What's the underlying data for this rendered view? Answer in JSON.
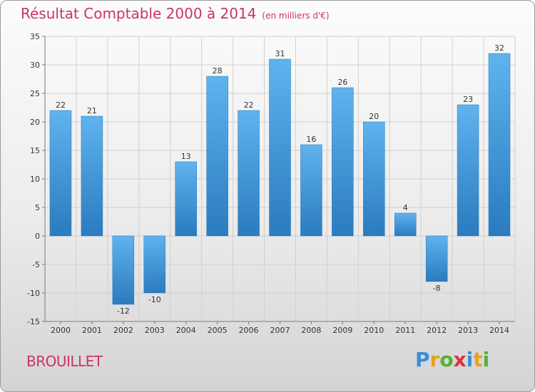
{
  "title": "Résultat Comptable 2000 à 2014",
  "unit": "(en milliers d'€)",
  "place": "BROUILLET",
  "brand": {
    "letters": [
      {
        "ch": "P",
        "color": "#3a8fd6"
      },
      {
        "ch": "r",
        "color": "#e8a020"
      },
      {
        "ch": "o",
        "color": "#55b030"
      },
      {
        "ch": "x",
        "color": "#e03040"
      },
      {
        "ch": "i",
        "color": "#3a8fd6"
      },
      {
        "ch": "t",
        "color": "#e8a020"
      },
      {
        "ch": "i",
        "color": "#55b030"
      }
    ]
  },
  "colors": {
    "accent": "#cc3366",
    "bar_top": "#5fb3ee",
    "bar_bottom": "#2a7bbf",
    "axis": "#7a7a7a",
    "grid": "#d0d0d0"
  },
  "chart_data": {
    "type": "bar",
    "categories": [
      "2000",
      "2001",
      "2002",
      "2003",
      "2004",
      "2005",
      "2006",
      "2007",
      "2008",
      "2009",
      "2010",
      "2011",
      "2012",
      "2013",
      "2014"
    ],
    "values": [
      22,
      21,
      -12,
      -10,
      13,
      28,
      22,
      31,
      16,
      26,
      20,
      4,
      -8,
      23,
      32
    ],
    "value_labels": [
      "22",
      "21",
      "-12",
      "-10",
      "13",
      "28",
      "22",
      "31",
      "16",
      "26",
      "20",
      "4",
      "-8",
      "23",
      "32"
    ],
    "ylim": [
      -15,
      35
    ],
    "yticks": [
      -15,
      -10,
      -5,
      0,
      5,
      10,
      15,
      20,
      25,
      30,
      35
    ],
    "grid": true,
    "title": "Résultat Comptable 2000 à 2014",
    "xlabel": "",
    "ylabel": ""
  }
}
